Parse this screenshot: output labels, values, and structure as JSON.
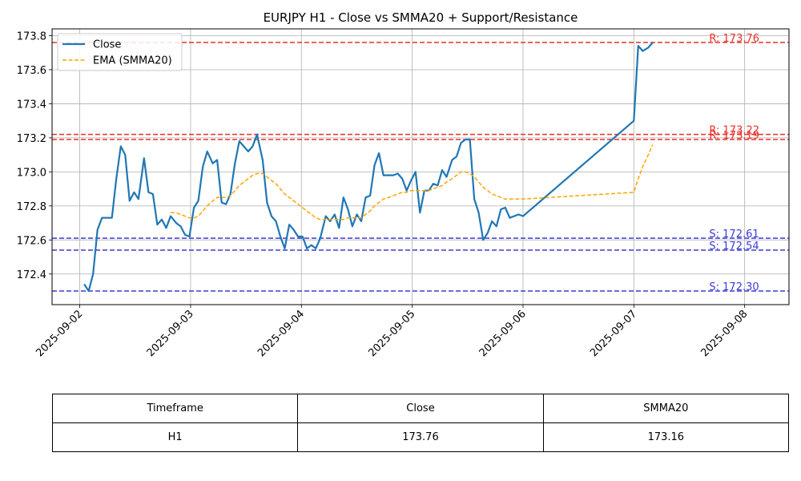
{
  "chart_data": {
    "type": "line",
    "title": "EURJPY H1 - Close vs SMMA20 + Support/Resistance",
    "xlabel": "",
    "ylabel": "",
    "x_ticks": [
      "2025-09-02",
      "2025-09-03",
      "2025-09-04",
      "2025-09-05",
      "2025-09-06",
      "2025-09-07",
      "2025-09-08"
    ],
    "y_ticks": [
      "172.4",
      "172.6",
      "172.8",
      "173.0",
      "173.2",
      "173.4",
      "173.6",
      "173.8"
    ],
    "xlim": [
      -0.25,
      6.4
    ],
    "ylim": [
      172.22,
      173.84
    ],
    "grid": true,
    "legend_position": "top-left",
    "series": [
      {
        "name": "Close",
        "color": "#1f77b4",
        "style": "solid",
        "x": [
          0.04,
          0.08,
          0.12,
          0.16,
          0.2,
          0.25,
          0.29,
          0.33,
          0.37,
          0.41,
          0.45,
          0.49,
          0.53,
          0.58,
          0.62,
          0.66,
          0.7,
          0.74,
          0.78,
          0.82,
          0.87,
          0.91,
          0.95,
          0.99,
          1.03,
          1.07,
          1.11,
          1.15,
          1.2,
          1.24,
          1.28,
          1.32,
          1.36,
          1.4,
          1.44,
          1.48,
          1.52,
          1.56,
          1.6,
          1.65,
          1.69,
          1.73,
          1.77,
          1.81,
          1.85,
          1.89,
          1.93,
          1.97,
          2.01,
          2.05,
          2.09,
          2.13,
          2.17,
          2.22,
          2.26,
          2.3,
          2.34,
          2.38,
          2.42,
          2.46,
          2.5,
          2.54,
          2.58,
          2.62,
          2.66,
          2.7,
          2.74,
          2.79,
          2.83,
          2.87,
          2.91,
          2.95,
          2.99,
          3.03,
          3.07,
          3.11,
          3.15,
          3.19,
          3.23,
          3.27,
          3.31,
          3.36,
          3.4,
          3.44,
          3.48,
          3.52,
          3.56,
          3.6,
          3.64,
          3.68,
          3.72,
          3.76,
          3.8,
          3.84,
          3.88,
          3.92,
          3.96,
          4.0,
          5.0,
          5.04,
          5.08,
          5.13,
          5.17
        ],
        "values": [
          172.34,
          172.3,
          172.4,
          172.66,
          172.73,
          172.73,
          172.73,
          172.96,
          173.15,
          173.1,
          172.83,
          172.88,
          172.84,
          173.08,
          172.88,
          172.87,
          172.69,
          172.72,
          172.67,
          172.74,
          172.7,
          172.68,
          172.63,
          172.62,
          172.79,
          172.83,
          173.03,
          173.12,
          173.05,
          173.07,
          172.82,
          172.81,
          172.87,
          173.05,
          173.18,
          173.15,
          173.12,
          173.15,
          173.22,
          173.07,
          172.82,
          172.74,
          172.71,
          172.62,
          172.55,
          172.69,
          172.66,
          172.62,
          172.62,
          172.55,
          172.57,
          172.55,
          172.61,
          172.74,
          172.71,
          172.75,
          172.67,
          172.85,
          172.78,
          172.68,
          172.75,
          172.71,
          172.85,
          172.86,
          173.04,
          173.11,
          172.98,
          172.98,
          172.98,
          172.99,
          172.96,
          172.89,
          172.95,
          173.0,
          172.76,
          172.89,
          172.89,
          172.93,
          172.92,
          173.01,
          172.97,
          173.07,
          173.09,
          173.17,
          173.19,
          173.19,
          172.84,
          172.76,
          172.6,
          172.64,
          172.71,
          172.68,
          172.78,
          172.79,
          172.73,
          172.74,
          172.75,
          172.74,
          173.3,
          173.74,
          173.71,
          173.73,
          173.76
        ]
      },
      {
        "name": "EMA (SMMA20)",
        "color": "#ffa500",
        "style": "dashed",
        "x": [
          0.82,
          0.87,
          0.91,
          0.95,
          0.99,
          1.03,
          1.07,
          1.11,
          1.15,
          1.2,
          1.24,
          1.28,
          1.32,
          1.36,
          1.4,
          1.44,
          1.48,
          1.52,
          1.56,
          1.6,
          1.65,
          1.69,
          1.73,
          1.77,
          1.81,
          1.85,
          1.89,
          1.93,
          1.97,
          2.01,
          2.05,
          2.09,
          2.13,
          2.17,
          2.22,
          2.26,
          2.3,
          2.34,
          2.38,
          2.42,
          2.46,
          2.5,
          2.54,
          2.58,
          2.62,
          2.66,
          2.7,
          2.74,
          2.79,
          2.83,
          2.87,
          2.91,
          2.95,
          2.99,
          3.03,
          3.07,
          3.11,
          3.15,
          3.19,
          3.23,
          3.27,
          3.31,
          3.36,
          3.4,
          3.44,
          3.48,
          3.52,
          3.56,
          3.6,
          3.64,
          3.68,
          3.72,
          3.76,
          3.8,
          3.84,
          3.88,
          3.92,
          3.96,
          4.0,
          5.0,
          5.04,
          5.08,
          5.13,
          5.17
        ],
        "values": [
          172.76,
          172.76,
          172.75,
          172.74,
          172.73,
          172.73,
          172.74,
          172.77,
          172.8,
          172.83,
          172.85,
          172.85,
          172.85,
          172.86,
          172.89,
          172.92,
          172.94,
          172.96,
          172.98,
          172.99,
          172.99,
          172.97,
          172.95,
          172.93,
          172.9,
          172.87,
          172.85,
          172.83,
          172.81,
          172.79,
          172.77,
          172.75,
          172.73,
          172.72,
          172.72,
          172.72,
          172.72,
          172.72,
          172.72,
          172.73,
          172.73,
          172.73,
          172.73,
          172.75,
          172.77,
          172.8,
          172.82,
          172.84,
          172.85,
          172.86,
          172.87,
          172.88,
          172.88,
          172.89,
          172.89,
          172.89,
          172.89,
          172.89,
          172.9,
          172.91,
          172.92,
          172.94,
          172.96,
          172.98,
          173.0,
          173.0,
          172.99,
          172.97,
          172.94,
          172.91,
          172.89,
          172.87,
          172.86,
          172.85,
          172.84,
          172.84,
          172.84,
          172.84,
          172.84,
          172.88,
          172.96,
          173.03,
          173.1,
          173.16
        ]
      }
    ],
    "hlines": [
      {
        "value": 173.76,
        "label": "R: 173.76",
        "color": "#e8302a"
      },
      {
        "value": 173.22,
        "label": "R: 173.22",
        "color": "#e8302a"
      },
      {
        "value": 173.19,
        "label": "R: 173.19",
        "color": "#e8302a"
      },
      {
        "value": 172.61,
        "label": "S: 172.61",
        "color": "#3b3bd6"
      },
      {
        "value": 172.54,
        "label": "S: 172.54",
        "color": "#3b3bd6"
      },
      {
        "value": 172.3,
        "label": "S: 172.30",
        "color": "#3b3bd6"
      }
    ]
  },
  "table": {
    "headers": [
      "Timeframe",
      "Close",
      "SMMA20"
    ],
    "row": [
      "H1",
      "173.76",
      "173.16"
    ]
  }
}
